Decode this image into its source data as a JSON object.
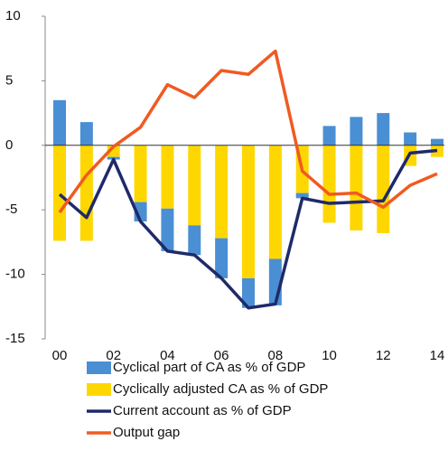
{
  "chart_data": {
    "type": "bar",
    "categories": [
      "00",
      null,
      "02",
      null,
      "04",
      null,
      "06",
      null,
      "08",
      null,
      "10",
      null,
      "12",
      null,
      "14"
    ],
    "ylim": [
      -15,
      10
    ],
    "yticks": [
      10,
      5,
      0,
      -5,
      -10,
      -15
    ],
    "series": [
      {
        "name": "Cyclical part of CA as % of GDP",
        "type": "bar",
        "color": "#4a8fd4",
        "values": [
          3.5,
          1.8,
          -0.2,
          -1.5,
          -3.3,
          -2.3,
          -3.1,
          -2.3,
          -3.6,
          -0.4,
          1.5,
          2.2,
          2.5,
          1.0,
          0.5
        ]
      },
      {
        "name": "Cyclically adjusted CA as % of GDP",
        "type": "bar",
        "color": "#ffd700",
        "values": [
          -7.4,
          -7.4,
          -0.9,
          -4.4,
          -4.9,
          -6.2,
          -7.2,
          -10.3,
          -8.8,
          -3.7,
          -6.0,
          -6.6,
          -6.8,
          -1.6,
          -0.9
        ]
      },
      {
        "name": "Current account as % of GDP",
        "type": "line",
        "color": "#1f2a6b",
        "values": [
          -3.8,
          -5.6,
          -1.1,
          -5.9,
          -8.2,
          -8.5,
          -10.3,
          -12.6,
          -12.3,
          -4.1,
          -4.5,
          -4.4,
          -4.3,
          -0.6,
          -0.4
        ]
      },
      {
        "name": "Output gap",
        "type": "line",
        "color": "#f05a22",
        "values": [
          -5.2,
          -2.3,
          -0.1,
          1.4,
          4.7,
          3.7,
          5.8,
          5.5,
          7.3,
          -2.0,
          -3.8,
          -3.7,
          -4.8,
          -3.1,
          -2.2
        ]
      }
    ]
  }
}
